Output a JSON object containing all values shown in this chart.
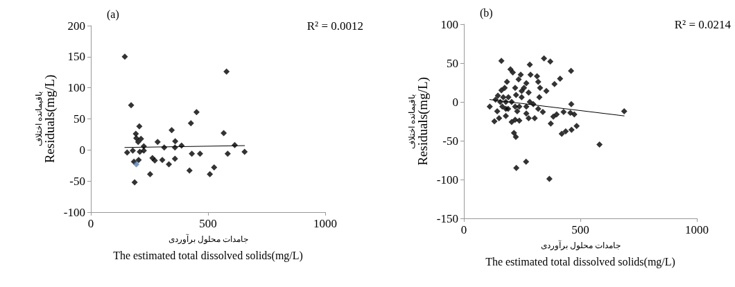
{
  "chart_data": [
    {
      "type": "scatter",
      "title": "(a)",
      "xlabel": "جامدات محلول برآوردی\nThe estimated total dissolved solids(mg/L)",
      "ylabel": "باقیمانده اختلاف\nResiduals(mg/L)",
      "annotations": [
        "R² = 0.0012"
      ],
      "xlim": [
        0,
        1000
      ],
      "xticks": [
        0,
        500,
        1000
      ],
      "ylim": [
        -100,
        200
      ],
      "yticks": [
        -100,
        -50,
        0,
        50,
        100,
        150,
        200
      ],
      "grid": false,
      "marker": "diamond",
      "series": [
        {
          "color": "#000000",
          "x": [
            145,
            172,
            187,
            207,
            192,
            194,
            214,
            202,
            155,
            179,
            209,
            226,
            226,
            184,
            204,
            253,
            263,
            273,
            285,
            305,
            313,
            333,
            345,
            359,
            360,
            359,
            387,
            421,
            427,
            431,
            451,
            466,
            508,
            526,
            567,
            579,
            584,
            614,
            656
          ],
          "values": [
            150,
            72,
            -52,
            38,
            26,
            19,
            18,
            13,
            -4,
            -1,
            -3,
            6,
            -1,
            -19,
            -16,
            -39,
            -13,
            -17,
            13,
            -16,
            4,
            -23,
            32,
            -14,
            14,
            4,
            7,
            -33,
            43,
            -6,
            61,
            -6,
            -39,
            -28,
            27,
            126,
            -6,
            8,
            -3
          ]
        },
        {
          "color": "#4f81bd",
          "x": [
            194
          ],
          "values": [
            -23
          ]
        },
        {
          "type": "line",
          "color": "#000000",
          "marker": "none",
          "x": [
            145,
            656
          ],
          "values": [
            4,
            7
          ]
        }
      ]
    },
    {
      "type": "scatter",
      "title": "(b)",
      "xlabel": "جامدات محلول برآوردی\nThe estimated total dissolved solids(mg/L)",
      "ylabel": "باقیمانده اختلاف\nResiduals(mg/L)",
      "annotations": [
        "R² = 0.0214"
      ],
      "xlim": [
        0,
        1000
      ],
      "xticks": [
        0,
        500,
        1000
      ],
      "ylim": [
        -150,
        100
      ],
      "yticks": [
        -150,
        -100,
        -50,
        0,
        50,
        100
      ],
      "grid": false,
      "marker": "diamond",
      "series": [
        {
          "color": "#000000",
          "x": [
            161,
            111,
            131,
            143,
            151,
            136,
            146,
            161,
            175,
            185,
            200,
            210,
            244,
            235,
            220,
            224,
            205,
            180,
            165,
            190,
            180,
            205,
            220,
            215,
            223,
            225,
            267,
            367,
            238,
            248,
            258,
            268,
            278,
            283,
            286,
            283,
            268,
            304,
            314,
            319,
            327,
            324,
            319,
            339,
            344,
            354,
            371,
            373,
            384,
            389,
            398,
            413,
            420,
            428,
            437,
            457,
            460,
            461,
            462,
            474,
            484,
            582,
            688,
            220,
            191,
            169,
            229,
            238,
            248,
            278,
            298,
            180,
            156,
            268
          ],
          "values": [
            53,
            -6,
            -25,
            -12,
            -21,
            3,
            8,
            15,
            18,
            26,
            42,
            38,
            35,
            29,
            18,
            9,
            0,
            0,
            -6,
            -9,
            -18,
            -26,
            -23,
            -40,
            -45,
            -85,
            -77,
            -99,
            -6,
            6,
            18,
            -15,
            -21,
            48,
            35,
            0,
            -6,
            -21,
            33,
            26,
            18,
            6,
            -9,
            -13,
            56,
            14,
            52,
            -28,
            -19,
            23,
            -16,
            30,
            -41,
            -13,
            -38,
            -14,
            40,
            -3,
            -36,
            -16,
            -31,
            -55,
            -12,
            -6,
            6,
            6,
            -12,
            -24,
            14,
            12,
            -3,
            -9,
            0,
            24
          ]
        },
        {
          "type": "line",
          "color": "#000000",
          "marker": "none",
          "x": [
            111,
            688
          ],
          "values": [
            3,
            -18
          ]
        }
      ]
    }
  ]
}
